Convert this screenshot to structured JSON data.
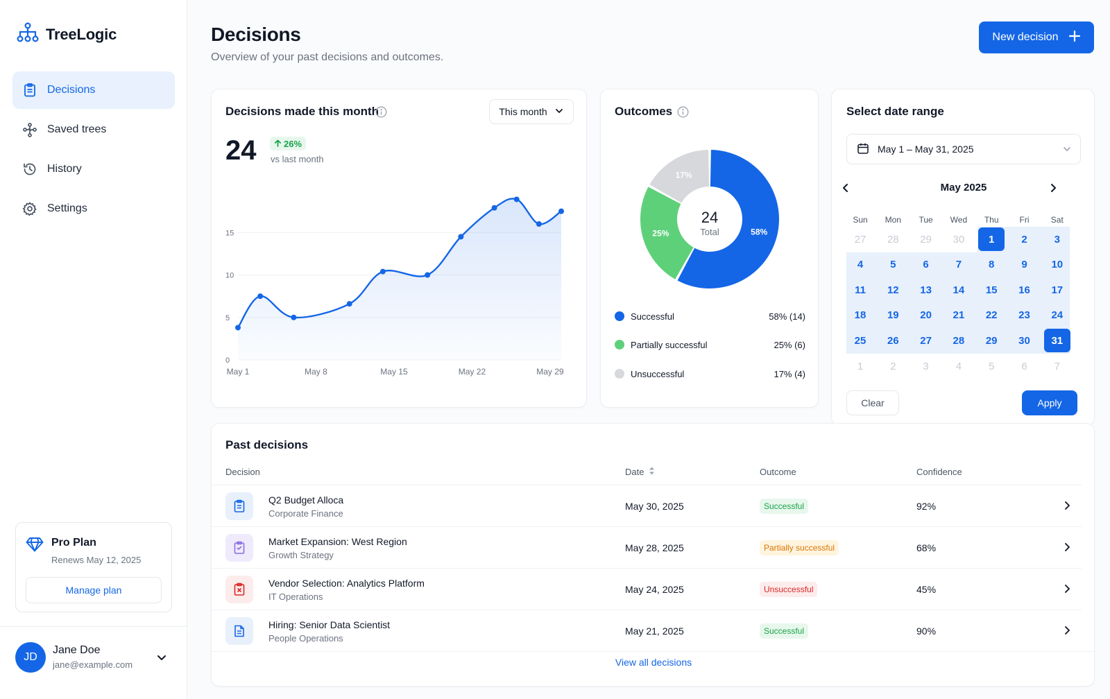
{
  "colors": {
    "primary": "#1466e6",
    "success": "#16a34a",
    "partial_green": "#5fd07a",
    "unsuccessful_gray": "#d6d8dc",
    "warning": "#d97706",
    "danger": "#dc2626"
  },
  "sidebar": {
    "brand": "TreeLogic",
    "brand_icon": "hierarchy-icon",
    "items": [
      {
        "label": "Decisions",
        "icon": "clipboard-icon",
        "active": true
      },
      {
        "label": "Saved trees",
        "icon": "branch-icon",
        "active": false
      },
      {
        "label": "History",
        "icon": "history-icon",
        "active": false
      },
      {
        "label": "Settings",
        "icon": "gear-icon",
        "active": false
      }
    ],
    "plan": {
      "name": "Pro Plan",
      "renews": "Renews May 12, 2025",
      "manage_label": "Manage plan",
      "icon": "diamond-icon"
    },
    "user": {
      "initials": "JD",
      "name": "Jane Doe",
      "email": "jane@example.com"
    }
  },
  "header": {
    "title": "Decisions",
    "subtitle": "Overview of your past decisions and outcomes.",
    "new_button": "New decision"
  },
  "decisions_card": {
    "title": "Decisions made this month",
    "period_select": "This month",
    "total": "24",
    "delta": "26%",
    "delta_caption": "vs last month"
  },
  "chart_data": {
    "type": "area",
    "title": "Decisions made this month",
    "x": [
      "May 1",
      "May 3",
      "May 6",
      "May 11",
      "May 14",
      "May 18",
      "May 21",
      "May 24",
      "May 26",
      "May 28",
      "May 30"
    ],
    "y": [
      3.8,
      7.5,
      5.0,
      6.6,
      10.4,
      10.0,
      14.5,
      17.9,
      18.9,
      16.0,
      17.5
    ],
    "xticks": [
      "May 1",
      "May 8",
      "May 15",
      "May 22",
      "May 29"
    ],
    "yticks": [
      "0",
      "5",
      "10",
      "15"
    ],
    "ylim": [
      0,
      20
    ],
    "grid": true,
    "color": "#1466e6"
  },
  "outcomes_card": {
    "title": "Outcomes",
    "center_value": "24",
    "center_label": "Total",
    "segments": [
      {
        "label": "Successful",
        "percent": 58,
        "count": 14,
        "display": "58% (14)",
        "slice_label": "58%",
        "color": "#1466e6"
      },
      {
        "label": "Partially successful",
        "percent": 25,
        "count": 6,
        "display": "25% (6)",
        "slice_label": "25%",
        "color": "#5fd07a"
      },
      {
        "label": "Unsuccessful",
        "percent": 17,
        "count": 4,
        "display": "17% (4)",
        "slice_label": "17%",
        "color": "#d6d8dc"
      }
    ]
  },
  "date_range": {
    "title": "Select date range",
    "value": "May 1 – May 31, 2025",
    "month": "May 2025",
    "dows": [
      "Sun",
      "Mon",
      "Tue",
      "Wed",
      "Thu",
      "Fri",
      "Sat"
    ],
    "weeks": [
      [
        "27",
        "28",
        "29",
        "30",
        "1",
        "2",
        "3"
      ],
      [
        "4",
        "5",
        "6",
        "7",
        "8",
        "9",
        "10"
      ],
      [
        "11",
        "12",
        "13",
        "14",
        "15",
        "16",
        "17"
      ],
      [
        "18",
        "19",
        "20",
        "21",
        "22",
        "23",
        "24"
      ],
      [
        "25",
        "26",
        "27",
        "28",
        "29",
        "30",
        "31"
      ],
      [
        "1",
        "2",
        "3",
        "4",
        "5",
        "6",
        "7"
      ]
    ],
    "clear_label": "Clear",
    "apply_label": "Apply"
  },
  "past_decisions": {
    "title": "Past decisions",
    "columns": {
      "decision": "Decision",
      "date": "Date",
      "outcome": "Outcome",
      "confidence": "Confidence"
    },
    "rows": [
      {
        "title": "Q2 Budget Alloca",
        "category": "Corporate Finance",
        "date": "May 30, 2025",
        "outcome": "Successful",
        "confidence": "92%",
        "kind": "success"
      },
      {
        "title": "Market Expansion: West Region",
        "category": "Growth Strategy",
        "date": "May 28, 2025",
        "outcome": "Partially successful",
        "confidence": "68%",
        "kind": "partial"
      },
      {
        "title": "Vendor Selection: Analytics Platform",
        "category": "IT Operations",
        "date": "May 24, 2025",
        "outcome": "Unsuccessful",
        "confidence": "45%",
        "kind": "fail"
      },
      {
        "title": "Hiring: Senior Data Scientist",
        "category": "People Operations",
        "date": "May 21, 2025",
        "outcome": "Successful",
        "confidence": "90%",
        "kind": "success"
      }
    ],
    "view_all": "View all decisions"
  }
}
